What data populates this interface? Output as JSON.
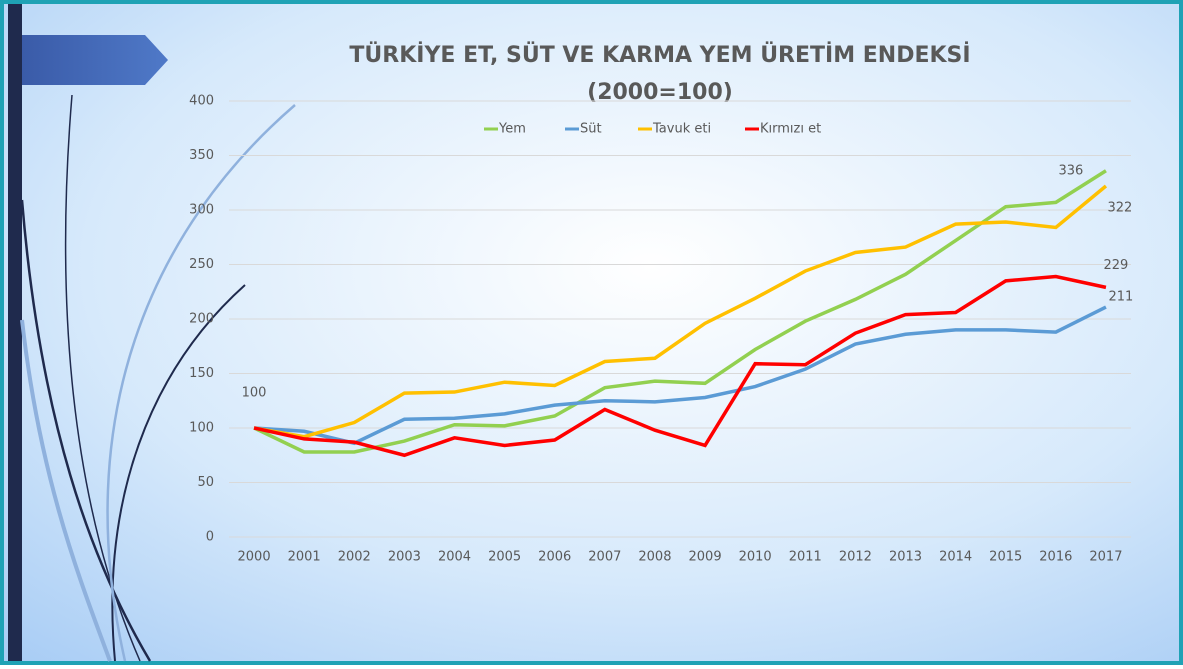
{
  "chart_data": {
    "type": "line",
    "title": [
      "TÜRKİYE ET, SÜT VE KARMA YEM ÜRETİM ENDEKSİ",
      "(2000=100)"
    ],
    "categories": [
      "2000",
      "2001",
      "2002",
      "2003",
      "2004",
      "2005",
      "2006",
      "2007",
      "2008",
      "2009",
      "2010",
      "2011",
      "2012",
      "2013",
      "2014",
      "2015",
      "2016",
      "2017"
    ],
    "series": [
      {
        "name": "Yem",
        "color": "#92d050",
        "values": [
          100,
          78,
          78,
          88,
          103,
          102,
          111,
          137,
          143,
          141,
          172,
          198,
          218,
          241,
          272,
          303,
          307,
          336
        ],
        "labels_at": [
          0,
          17
        ]
      },
      {
        "name": "Süt",
        "color": "#5b9bd5",
        "values": [
          100,
          97,
          86,
          108,
          109,
          113,
          121,
          125,
          124,
          128,
          138,
          154,
          177,
          186,
          190,
          190,
          188,
          211
        ],
        "labels_at": [
          17
        ]
      },
      {
        "name": "Tavuk eti",
        "color": "#ffc000",
        "values": [
          100,
          92,
          105,
          132,
          133,
          142,
          139,
          161,
          164,
          196,
          219,
          244,
          261,
          266,
          287,
          289,
          284,
          322
        ],
        "labels_at": [
          17
        ]
      },
      {
        "name": "Kırmızı et",
        "color": "#ff0000",
        "values": [
          100,
          90,
          87,
          75,
          91,
          84,
          89,
          117,
          98,
          84,
          159,
          158,
          187,
          204,
          206,
          235,
          239,
          229
        ],
        "labels_at": [
          17
        ]
      }
    ],
    "ylim": [
      0,
      400
    ],
    "yticks": [
      0,
      50,
      100,
      150,
      200,
      250,
      300,
      350,
      400
    ],
    "grid": true,
    "legend": "top"
  }
}
